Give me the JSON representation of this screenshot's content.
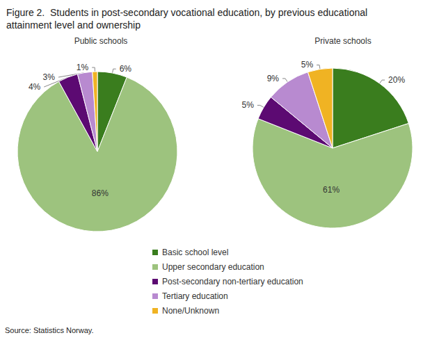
{
  "title": "Figure 2.  Students in post-secondary vocational education, by previous educational attainment level and ownership",
  "source": "Source: Statistics Norway.",
  "chart_data": [
    {
      "type": "pie",
      "title": "Public schools",
      "categories": [
        "Basic school level",
        "Upper secondary education",
        "Post-secondary non-tertiary education",
        "Tertiary education",
        "None/Unknown"
      ],
      "values": [
        6,
        86,
        4,
        3,
        1
      ],
      "value_labels": [
        "6%",
        "86%",
        "4%",
        "3%",
        "1%"
      ],
      "colors": [
        "#3a7d1e",
        "#9dc37e",
        "#5c0a72",
        "#b88ad0",
        "#f0b323"
      ],
      "data_labels": true,
      "legend": "bottom"
    },
    {
      "type": "pie",
      "title": "Private schools",
      "categories": [
        "Basic school level",
        "Upper secondary education",
        "Post-secondary non-tertiary education",
        "Tertiary education",
        "None/Unknown"
      ],
      "values": [
        20,
        61,
        5,
        9,
        5
      ],
      "value_labels": [
        "20%",
        "61%",
        "5%",
        "9%",
        "5%"
      ],
      "colors": [
        "#3a7d1e",
        "#9dc37e",
        "#5c0a72",
        "#b88ad0",
        "#f0b323"
      ],
      "data_labels": true,
      "legend": "bottom"
    }
  ]
}
